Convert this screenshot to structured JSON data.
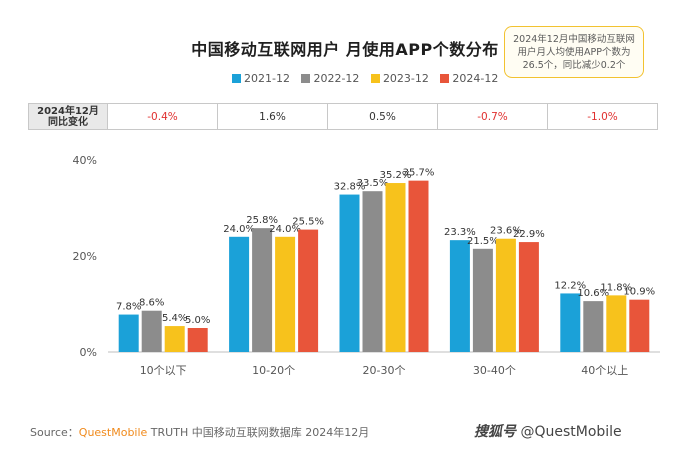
{
  "title": "中国移动互联网用户 月使用APP个数分布",
  "note": {
    "lines": [
      "2024年12月中国移动互联网",
      "用户月人均使用APP个数为",
      "26.5个，同比减少0.2个"
    ]
  },
  "colors": {
    "s2021": "#1ba1d8",
    "s2022": "#8c8c8c",
    "s2023": "#f7c21c",
    "s2024": "#e8553a",
    "negative": "#e0302f",
    "grid": "#d9d9d9"
  },
  "change_row": {
    "header_line1": "2024年12月",
    "header_line2": "同比变化",
    "values": [
      "-0.4%",
      "1.6%",
      "0.5%",
      "-0.7%",
      "-1.0%"
    ]
  },
  "chart_data": {
    "type": "bar",
    "categories": [
      "10个以下",
      "10-20个",
      "20-30个",
      "30-40个",
      "40个以上"
    ],
    "series": [
      {
        "name": "2021-12",
        "values": [
          7.8,
          24.0,
          32.8,
          23.3,
          12.2
        ]
      },
      {
        "name": "2022-12",
        "values": [
          8.6,
          25.8,
          33.5,
          21.5,
          10.6
        ]
      },
      {
        "name": "2023-12",
        "values": [
          5.4,
          24.0,
          35.2,
          23.6,
          11.8
        ]
      },
      {
        "name": "2024-12",
        "values": [
          5.0,
          25.5,
          35.7,
          22.9,
          10.9
        ]
      }
    ],
    "value_labels": [
      [
        "7.8%",
        "24.0%",
        "32.8%",
        "23.3%",
        "12.2%"
      ],
      [
        "8.6%",
        "25.8%",
        "33.5%",
        "21.5%",
        "10.6%"
      ],
      [
        "5.4%",
        "24.0%",
        "35.2%",
        "23.6%",
        "11.8%"
      ],
      [
        "5.0%",
        "25.5%",
        "35.7%",
        "22.9%",
        "10.9%"
      ]
    ],
    "yticks": [
      "0%",
      "20%",
      "40%"
    ],
    "ylim": [
      0,
      40
    ],
    "legend_position": "top",
    "grid": false
  },
  "source": {
    "label": "Source：",
    "brand": "QuestMobile",
    "text": " TRUTH 中国移动互联网数据库 2024年12月"
  },
  "watermark": {
    "icon_text": "搜狐号",
    "text": "@QuestMobile"
  }
}
